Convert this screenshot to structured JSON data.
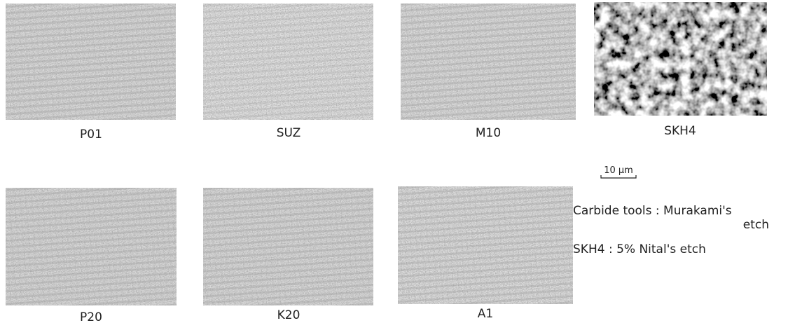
{
  "panels": [
    {
      "label": "P01"
    },
    {
      "label": "SUZ"
    },
    {
      "label": "M10"
    },
    {
      "label": "SKH4"
    },
    {
      "label": "P20"
    },
    {
      "label": "K20"
    },
    {
      "label": "A1"
    }
  ],
  "scale_bar": {
    "label": "10 μm"
  },
  "legend": {
    "lines": [
      "Carbide tools : Murakami's",
      "etch",
      "SKH4 : 5% Nital's etch"
    ]
  }
}
